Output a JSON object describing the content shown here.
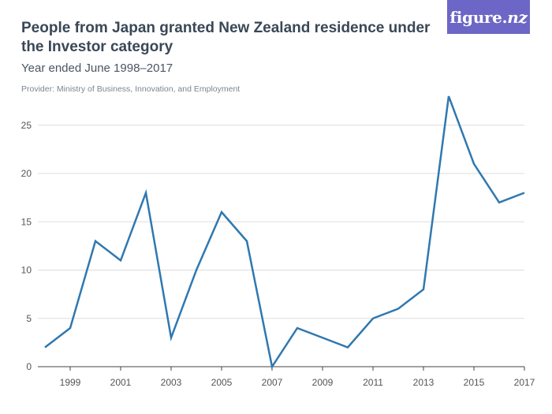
{
  "header": {
    "title": "People from Japan granted New Zealand residence under the Investor category",
    "subtitle": "Year ended June 1998–2017",
    "provider": "Provider: Ministry of Business, Innovation, and Employment"
  },
  "logo": {
    "main": "figure.",
    "accent": "nz"
  },
  "chart_data": {
    "type": "line",
    "title": "People from Japan granted New Zealand residence under the Investor category",
    "subtitle": "Year ended June 1998–2017",
    "xlabel": "",
    "ylabel": "",
    "x": [
      1998,
      1999,
      2000,
      2001,
      2002,
      2003,
      2004,
      2005,
      2006,
      2007,
      2008,
      2009,
      2010,
      2011,
      2012,
      2013,
      2014,
      2015,
      2016,
      2017
    ],
    "series": [
      {
        "values": [
          2,
          4,
          13,
          11,
          18,
          3,
          10,
          16,
          13,
          0,
          4,
          3,
          2,
          5,
          6,
          8,
          28,
          21,
          17,
          18
        ]
      }
    ],
    "xlim": [
      1998,
      2017
    ],
    "ylim": [
      0,
      28
    ],
    "x_ticks": [
      "1999",
      "2001",
      "2003",
      "2005",
      "2007",
      "2009",
      "2011",
      "2013",
      "2015",
      "2017"
    ],
    "y_ticks": [
      "0",
      "5",
      "10",
      "15",
      "20",
      "25"
    ],
    "grid": true,
    "colors": {
      "line": "#2f78b0",
      "grid": "#dddddd",
      "axis": "#444444",
      "logo_bg": "#6c66c6"
    }
  }
}
